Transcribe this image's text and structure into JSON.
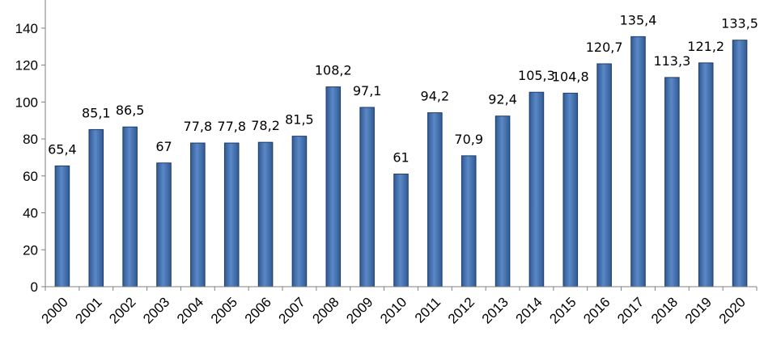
{
  "chart_data": {
    "type": "bar",
    "title": "",
    "xlabel": "",
    "ylabel": "",
    "categories": [
      "2000",
      "2001",
      "2002",
      "2003",
      "2004",
      "2005",
      "2006",
      "2007",
      "2008",
      "2009",
      "2010",
      "2011",
      "2012",
      "2013",
      "2014",
      "2015",
      "2016",
      "2017",
      "2018",
      "2019",
      "2020"
    ],
    "values": [
      65.4,
      85.1,
      86.5,
      67,
      77.8,
      77.8,
      78.2,
      81.5,
      108.2,
      97.1,
      61,
      94.2,
      70.9,
      92.4,
      105.3,
      104.8,
      120.7,
      135.4,
      113.3,
      121.2,
      133.5
    ],
    "value_labels": [
      "65,4",
      "85,1",
      "86,5",
      "67",
      "77,8",
      "77,8",
      "78,2",
      "81,5",
      "108,2",
      "97,1",
      "61",
      "94,2",
      "70,9",
      "92,4",
      "105,3",
      "104,8",
      "120,7",
      "135,4",
      "113,3",
      "121,2",
      "133,5"
    ],
    "yticks": [
      "0",
      "20",
      "40",
      "60",
      "80",
      "100",
      "120",
      "140"
    ],
    "ylim": [
      0,
      150
    ],
    "grid": false,
    "legend": "none",
    "bar_color": "#4a76b5",
    "bar_edge_color": "#1f3d6b"
  }
}
